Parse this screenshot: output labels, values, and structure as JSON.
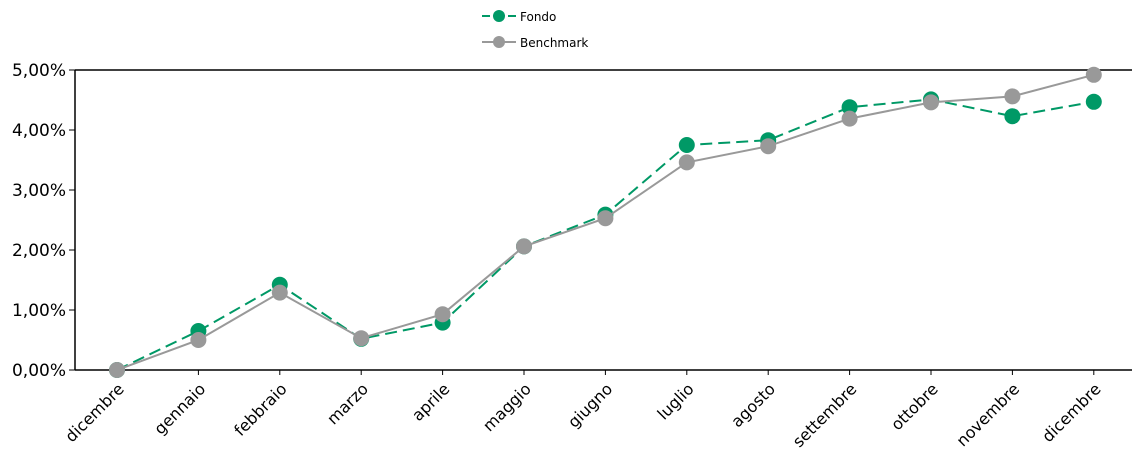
{
  "chart_data": {
    "type": "line",
    "categories": [
      "dicembre",
      "gennaio",
      "febbraio",
      "marzo",
      "aprile",
      "maggio",
      "giugno",
      "luglio",
      "agosto",
      "settembre",
      "ottobre",
      "novembre",
      "dicembre"
    ],
    "series": [
      {
        "name": "Fondo",
        "color": "#009966",
        "dash": "dashed",
        "values": [
          0.0,
          0.65,
          1.42,
          0.52,
          0.79,
          2.06,
          2.59,
          3.75,
          3.83,
          4.38,
          4.51,
          4.23,
          4.47
        ]
      },
      {
        "name": "Benchmark",
        "color": "#999999",
        "dash": "solid",
        "values": [
          0.0,
          0.5,
          1.29,
          0.53,
          0.93,
          2.06,
          2.53,
          3.46,
          3.73,
          4.19,
          4.46,
          4.56,
          4.92
        ]
      }
    ],
    "ylim": [
      0,
      5
    ],
    "yticks": [
      "0,00%",
      "1,00%",
      "2,00%",
      "3,00%",
      "4,00%",
      "5,00%"
    ],
    "title": "",
    "xlabel": "",
    "ylabel": "",
    "legend": "top-center",
    "grid": false
  }
}
